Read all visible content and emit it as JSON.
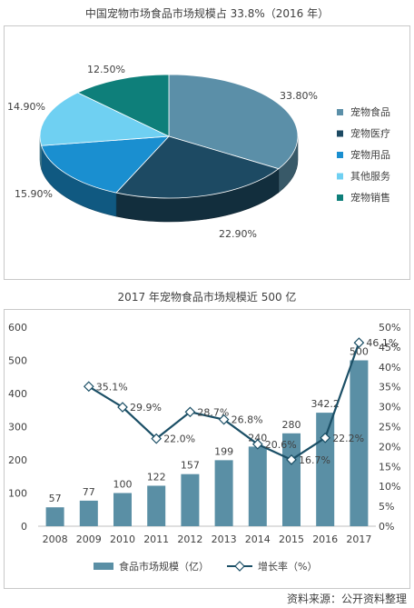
{
  "chart_data": [
    {
      "type": "pie",
      "title": "中国宠物市场食品市场规模占 33.8%（2016 年）",
      "slices": [
        {
          "label": "宠物食品",
          "value": 33.8,
          "value_label": "33.80%",
          "color": "#5b8fa8"
        },
        {
          "label": "宠物医疗",
          "value": 22.9,
          "value_label": "22.90%",
          "color": "#1d4a63"
        },
        {
          "label": "宠物用品",
          "value": 15.9,
          "value_label": "15.90%",
          "color": "#1a8fd0"
        },
        {
          "label": "其他服务",
          "value": 14.9,
          "value_label": "14.90%",
          "color": "#6fd0f2"
        },
        {
          "label": "宠物销售",
          "value": 12.5,
          "value_label": "12.50%",
          "color": "#0e7f7a"
        }
      ],
      "legend_position": "right"
    },
    {
      "type": "bar",
      "title": "2017 年宠物食品市场规模近 500 亿",
      "categories": [
        "2008",
        "2009",
        "2010",
        "2011",
        "2012",
        "2013",
        "2014",
        "2015",
        "2016",
        "2017"
      ],
      "series": [
        {
          "name": "食品市场规模（亿）",
          "type": "bar",
          "axis": "left",
          "color": "#5a8fa5",
          "values": [
            57,
            77,
            100,
            122,
            157,
            199,
            240,
            280,
            342.2,
            500
          ],
          "labels": [
            "57",
            "77",
            "100",
            "122",
            "157",
            "199",
            "240",
            "280",
            "342.2",
            "500"
          ]
        },
        {
          "name": "增长率（%）",
          "type": "line",
          "axis": "right",
          "color": "#1b4f66",
          "values": [
            null,
            35.1,
            29.9,
            22.0,
            28.7,
            26.8,
            20.6,
            16.7,
            22.2,
            46.1
          ],
          "labels": [
            "",
            "35.1%",
            "29.9%",
            "22.0%",
            "28.7%",
            "26.8%",
            "20.6%",
            "16.7%",
            "22.2%",
            "46.1%"
          ]
        }
      ],
      "ylim": [
        0,
        600
      ],
      "yticks": [
        "0",
        "100",
        "200",
        "300",
        "400",
        "500",
        "600"
      ],
      "y2lim": [
        0,
        50
      ],
      "y2ticks": [
        "0%",
        "5%",
        "10%",
        "15%",
        "20%",
        "25%",
        "30%",
        "35%",
        "40%",
        "45%",
        "50%"
      ],
      "grid": false,
      "legend_position": "bottom"
    }
  ],
  "source": "资料来源：公开资料整理"
}
